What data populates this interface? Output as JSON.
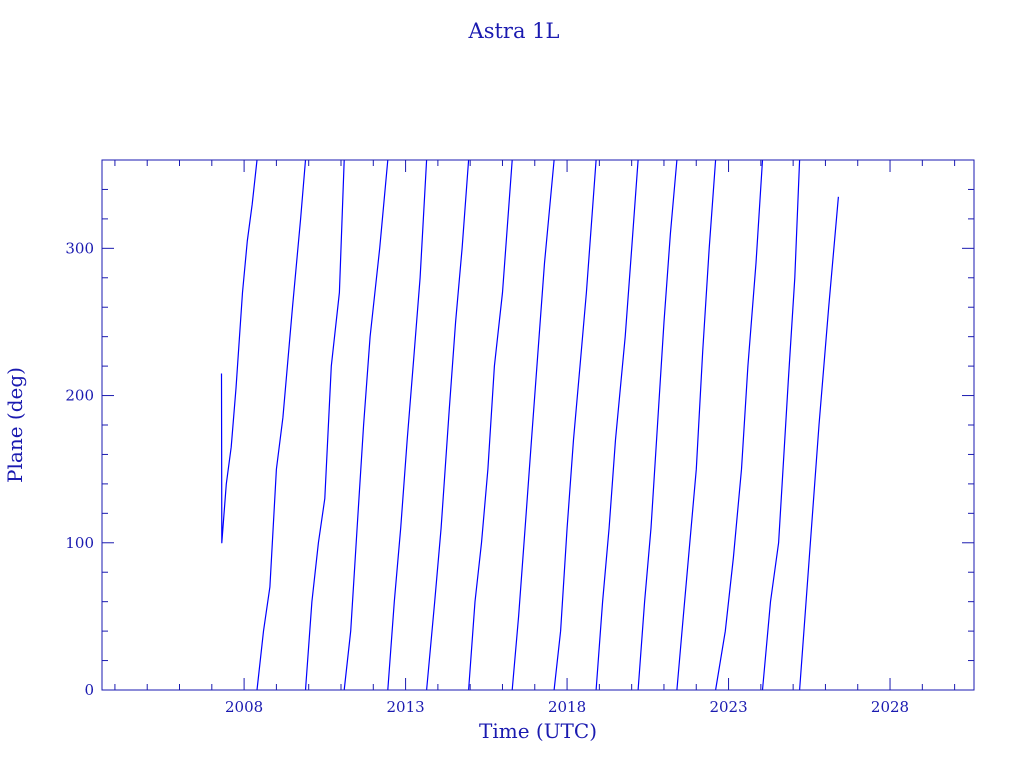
{
  "chart_data": {
    "type": "line",
    "title": "Astra 1L",
    "xlabel": "Time (UTC)",
    "ylabel": "Plane (deg)",
    "xlim": [
      2003.6,
      2030.6
    ],
    "ylim": [
      0,
      360
    ],
    "x_ticks": [
      2008,
      2013,
      2018,
      2023,
      2028
    ],
    "x_tick_labels": [
      "2008",
      "2013",
      "2018",
      "2023",
      "2028"
    ],
    "y_ticks": [
      0,
      100,
      200,
      300
    ],
    "y_tick_labels": [
      "0",
      "100",
      "200",
      "300"
    ],
    "grid": false,
    "line_color": "#0000ff",
    "axis_color": "#1a1ab0",
    "series": [
      {
        "values": [
          [
            2007.3,
            215
          ],
          [
            2007.31,
            100
          ],
          [
            2007.45,
            140
          ],
          [
            2007.6,
            165
          ],
          [
            2007.75,
            205
          ],
          [
            2007.95,
            270
          ],
          [
            2008.1,
            305
          ],
          [
            2008.25,
            330
          ],
          [
            2008.4,
            360
          ],
          [
            2008.4,
            0
          ],
          [
            2008.6,
            40
          ],
          [
            2008.8,
            70
          ],
          [
            2009.0,
            150
          ],
          [
            2009.2,
            185
          ],
          [
            2009.5,
            260
          ],
          [
            2009.75,
            320
          ],
          [
            2009.9,
            360
          ],
          [
            2009.9,
            0
          ],
          [
            2010.1,
            60
          ],
          [
            2010.3,
            100
          ],
          [
            2010.5,
            130
          ],
          [
            2010.7,
            220
          ],
          [
            2010.95,
            270
          ],
          [
            2011.1,
            360
          ],
          [
            2011.1,
            0
          ],
          [
            2011.3,
            40
          ],
          [
            2011.5,
            110
          ],
          [
            2011.7,
            180
          ],
          [
            2011.9,
            240
          ],
          [
            2012.2,
            300
          ],
          [
            2012.45,
            360
          ],
          [
            2012.45,
            0
          ],
          [
            2012.65,
            60
          ],
          [
            2012.85,
            110
          ],
          [
            2013.05,
            170
          ],
          [
            2013.25,
            225
          ],
          [
            2013.45,
            280
          ],
          [
            2013.65,
            360
          ],
          [
            2013.65,
            0
          ],
          [
            2013.9,
            60
          ],
          [
            2014.1,
            110
          ],
          [
            2014.35,
            190
          ],
          [
            2014.55,
            250
          ],
          [
            2014.75,
            300
          ],
          [
            2014.95,
            360
          ],
          [
            2014.95,
            0
          ],
          [
            2015.15,
            60
          ],
          [
            2015.35,
            100
          ],
          [
            2015.55,
            150
          ],
          [
            2015.75,
            220
          ],
          [
            2016.0,
            270
          ],
          [
            2016.3,
            360
          ],
          [
            2016.3,
            0
          ],
          [
            2016.5,
            50
          ],
          [
            2016.7,
            110
          ],
          [
            2016.9,
            170
          ],
          [
            2017.1,
            230
          ],
          [
            2017.3,
            290
          ],
          [
            2017.6,
            360
          ],
          [
            2017.6,
            0
          ],
          [
            2017.8,
            40
          ],
          [
            2018.0,
            110
          ],
          [
            2018.2,
            170
          ],
          [
            2018.4,
            220
          ],
          [
            2018.6,
            270
          ],
          [
            2018.9,
            360
          ],
          [
            2018.9,
            0
          ],
          [
            2019.1,
            60
          ],
          [
            2019.3,
            110
          ],
          [
            2019.5,
            170
          ],
          [
            2019.8,
            240
          ],
          [
            2020.0,
            300
          ],
          [
            2020.2,
            360
          ],
          [
            2020.2,
            0
          ],
          [
            2020.4,
            60
          ],
          [
            2020.6,
            110
          ],
          [
            2020.8,
            180
          ],
          [
            2021.0,
            250
          ],
          [
            2021.2,
            310
          ],
          [
            2021.4,
            360
          ],
          [
            2021.4,
            0
          ],
          [
            2021.6,
            50
          ],
          [
            2021.8,
            100
          ],
          [
            2022.0,
            150
          ],
          [
            2022.2,
            230
          ],
          [
            2022.4,
            300
          ],
          [
            2022.6,
            360
          ],
          [
            2022.6,
            0
          ],
          [
            2022.9,
            40
          ],
          [
            2023.15,
            90
          ],
          [
            2023.4,
            150
          ],
          [
            2023.6,
            220
          ],
          [
            2023.85,
            290
          ],
          [
            2024.05,
            360
          ],
          [
            2024.05,
            0
          ],
          [
            2024.3,
            60
          ],
          [
            2024.55,
            100
          ],
          [
            2024.85,
            210
          ],
          [
            2025.05,
            280
          ],
          [
            2025.2,
            360
          ],
          [
            2025.2,
            0
          ],
          [
            2025.5,
            90
          ],
          [
            2025.8,
            180
          ],
          [
            2026.1,
            260
          ],
          [
            2026.4,
            335
          ]
        ]
      }
    ]
  }
}
